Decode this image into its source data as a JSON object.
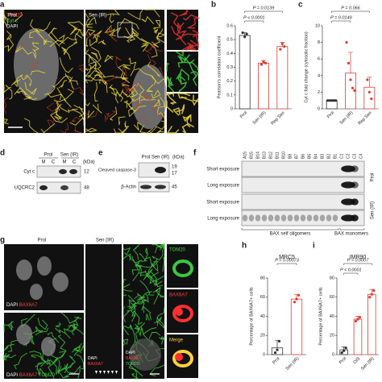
{
  "panel_a": {
    "letter": "a",
    "legend": [
      {
        "text": "TOM20",
        "color": "#ff4040"
      },
      {
        "text": "Cyt c",
        "color": "#4cd44c"
      },
      {
        "text": "DAPI",
        "color": "#ffffff"
      }
    ],
    "left": "Prol",
    "right": "Sen (IR)"
  },
  "panel_d": {
    "letter": "d",
    "groups": [
      "Prol",
      "Sen (IR)"
    ],
    "lanes": [
      "M",
      "C",
      "M",
      "C"
    ],
    "unit": "(kDa)",
    "rows": [
      {
        "label": "Cyt c",
        "kda": [
          12
        ]
      },
      {
        "label": "UQCRC2",
        "kda": [
          48
        ]
      }
    ]
  },
  "panel_e": {
    "letter": "e",
    "groups": [
      "Prol",
      "Sen (IR)"
    ],
    "unit": "(kDa)",
    "rows": [
      {
        "label": "Cleaved caspase-3",
        "kda": [
          19,
          17
        ]
      },
      {
        "label": "β-Actin",
        "kda": [
          45
        ]
      }
    ]
  },
  "panel_f": {
    "letter": "f",
    "lanes": [
      "A15",
      "B15",
      "B14",
      "B13",
      "B12",
      "B11",
      "B10",
      "B8",
      "B7",
      "B6",
      "B5",
      "B4",
      "B3",
      "B2",
      "B1",
      "C1",
      "C2",
      "C3",
      "C4"
    ],
    "groups": [
      "Prol",
      "Sen (IR)"
    ],
    "rows": [
      "Short exposure",
      "Long exposure"
    ],
    "brackets": [
      "BAX self oligomers",
      "BAX monomers"
    ]
  },
  "panel_g": {
    "letter": "g",
    "groups": [
      "Prol",
      "Sen (IR)"
    ],
    "labels": [
      [
        {
          "text": "DAPI",
          "color": "#ffffff"
        },
        {
          "text": "BAX6A7",
          "color": "#ff4040"
        }
      ],
      [
        {
          "text": "DAPI",
          "color": "#ffffff"
        },
        {
          "text": "BAX6A7",
          "color": "#ff4040"
        },
        {
          "text": "TOM20",
          "color": "#4cd44c"
        }
      ],
      [
        {
          "text": "BAX6A7",
          "color": "#ff4040"
        },
        {
          "text": "DAPI",
          "color": "#ffffff"
        }
      ],
      [
        {
          "text": "TOM20",
          "color": "#4cd44c"
        },
        {
          "text": "BAX6A7",
          "color": "#ff4040"
        },
        {
          "text": "DAPI",
          "color": "#ffffff"
        }
      ]
    ],
    "insets": [
      {
        "text": "TOM20",
        "color": "#4cd44c"
      },
      {
        "text": "BAX6A7",
        "color": "#ff4040"
      },
      {
        "text": "Merge",
        "color": "#ffd23c"
      }
    ]
  },
  "chart_data": [
    {
      "type": "bar",
      "letter": "b",
      "ylabel": "Pearson's correlation coefficient",
      "categories": [
        "Prol",
        "Sen (IR)",
        "Rep Sen"
      ],
      "values": [
        0.53,
        0.33,
        0.45
      ],
      "errors": [
        0.02,
        0.02,
        0.03
      ],
      "points": [
        [
          0.55,
          0.52,
          0.54
        ],
        [
          0.32,
          0.34,
          0.33
        ],
        [
          0.43,
          0.47,
          0.45
        ]
      ],
      "colors": [
        "#333333",
        "#e03c31",
        "#e03c31"
      ],
      "ylim": [
        0,
        0.6
      ],
      "yticks": [
        0,
        0.1,
        0.2,
        0.3,
        0.4,
        0.5,
        0.6
      ],
      "annotations": [
        "P = 0.0139",
        "P < 0.0001"
      ]
    },
    {
      "type": "bar",
      "letter": "c",
      "ylabel": "Cyt c fold change (cytosolic fraction)",
      "categories": [
        "Prol",
        "Sen (IR)",
        "Rep Sen"
      ],
      "values": [
        1,
        4.3,
        2.6
      ],
      "errors": [
        0,
        2.5,
        1.2
      ],
      "points": [
        [
          1,
          1,
          1,
          1,
          1
        ],
        [
          8,
          5.5,
          3.5,
          2.5,
          2.2
        ],
        [
          3.5,
          2,
          1.2
        ]
      ],
      "colors": [
        "#333333",
        "#e03c31",
        "#e03c31"
      ],
      "ylim": [
        0,
        10
      ],
      "yticks": [
        0,
        2,
        4,
        6,
        8,
        10
      ],
      "annotations": [
        "P = 0.066",
        "P = 0.0149"
      ]
    },
    {
      "type": "bar",
      "letter": "h",
      "title": "MRC5",
      "ylabel": "Percentage of BAX6A7+ cells",
      "categories": [
        "Prol",
        "Sen (IR)"
      ],
      "values": [
        7,
        58
      ],
      "errors": [
        8,
        5
      ],
      "points": [
        [
          2,
          5,
          14
        ],
        [
          55,
          58,
          62
        ]
      ],
      "colors": [
        "#333333",
        "#e03c31"
      ],
      "ylim": [
        0,
        80
      ],
      "yticks": [
        0,
        20,
        40,
        60,
        80
      ],
      "annotations": [
        "P = 0.00073"
      ]
    },
    {
      "type": "bar",
      "letter": "i",
      "title": "IMR90",
      "ylabel": "Percentage of BAX6A7+ cells",
      "categories": [
        "Prol",
        "OIS",
        "Sen (IR)"
      ],
      "values": [
        5,
        37,
        63
      ],
      "errors": [
        3,
        3,
        5
      ],
      "points": [
        [
          2,
          4,
          7
        ],
        [
          35,
          37,
          39
        ],
        [
          60,
          63,
          67
        ]
      ],
      "colors": [
        "#333333",
        "#e03c31",
        "#e03c31"
      ],
      "ylim": [
        0,
        80
      ],
      "yticks": [
        0,
        20,
        40,
        60,
        80
      ],
      "annotations": [
        "P < 0.0001",
        "P = 0.0007"
      ]
    }
  ]
}
